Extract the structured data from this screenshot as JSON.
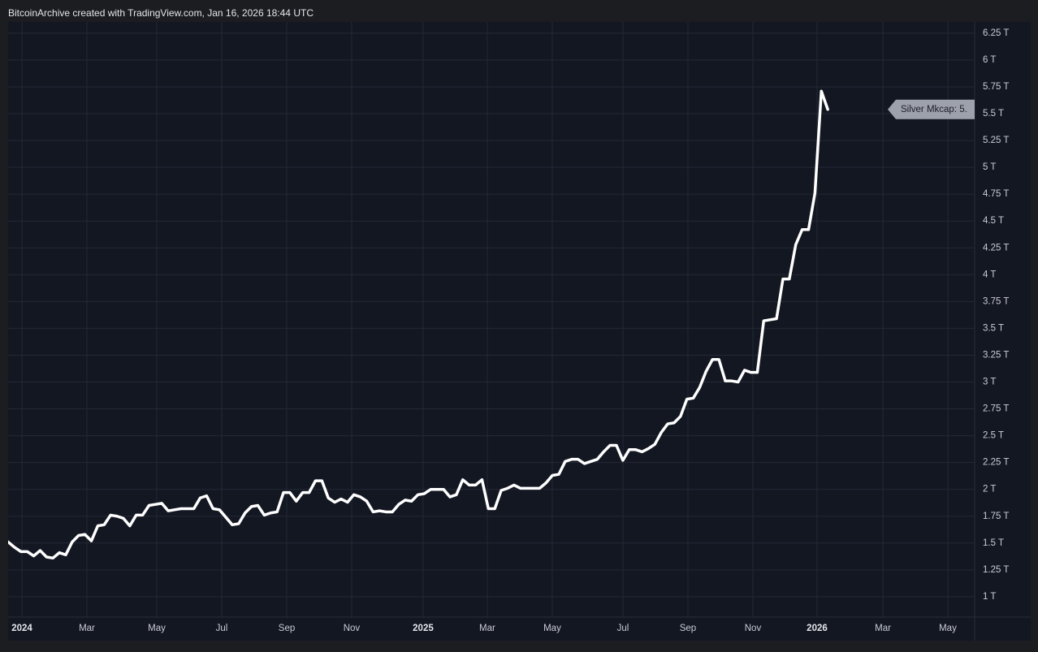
{
  "chart_data": {
    "type": "line",
    "title": "BitcoinArchive created with TradingView.com, Jan 16, 2026 18:44 UTC",
    "label": "Silver Mkcap: 5.",
    "color": "#ffffff",
    "grid": true,
    "values": [
      1.51,
      1.46,
      1.42,
      1.42,
      1.38,
      1.43,
      1.37,
      1.36,
      1.41,
      1.39,
      1.51,
      1.57,
      1.58,
      1.52,
      1.66,
      1.67,
      1.76,
      1.75,
      1.73,
      1.66,
      1.76,
      1.76,
      1.85,
      1.86,
      1.87,
      1.8,
      1.81,
      1.82,
      1.82,
      1.82,
      1.92,
      1.94,
      1.82,
      1.81,
      1.74,
      1.67,
      1.68,
      1.78,
      1.84,
      1.85,
      1.76,
      1.78,
      1.79,
      1.97,
      1.97,
      1.89,
      1.97,
      1.97,
      2.08,
      2.08,
      1.92,
      1.88,
      1.91,
      1.88,
      1.95,
      1.93,
      1.89,
      1.79,
      1.8,
      1.79,
      1.79,
      1.86,
      1.9,
      1.89,
      1.95,
      1.96,
      2.0,
      2.0,
      2.0,
      1.93,
      1.95,
      2.09,
      2.04,
      2.04,
      2.09,
      1.82,
      1.82,
      1.99,
      2.01,
      2.04,
      2.01,
      2.01,
      2.01,
      2.01,
      2.06,
      2.13,
      2.14,
      2.26,
      2.28,
      2.28,
      2.24,
      2.26,
      2.28,
      2.35,
      2.41,
      2.41,
      2.27,
      2.37,
      2.37,
      2.35,
      2.38,
      2.42,
      2.53,
      2.61,
      2.62,
      2.68,
      2.84,
      2.85,
      2.95,
      3.1,
      3.21,
      3.21,
      3.01,
      3.01,
      3.0,
      3.11,
      3.09,
      3.09,
      3.57,
      3.58,
      3.59,
      3.96,
      3.96,
      4.28,
      4.42,
      4.42,
      4.76,
      5.71,
      5.54
    ],
    "xlim": [
      0,
      150.94
    ],
    "xticks": [
      {
        "value": 2.16,
        "label": "2024"
      },
      {
        "value": 12.3,
        "label": "Mar"
      },
      {
        "value": 23.21,
        "label": "May"
      },
      {
        "value": 33.36,
        "label": "Jul"
      },
      {
        "value": 43.51,
        "label": "Sep"
      },
      {
        "value": 53.65,
        "label": "Nov"
      },
      {
        "value": 64.81,
        "label": "2025"
      },
      {
        "value": 74.83,
        "label": "Mar"
      },
      {
        "value": 84.98,
        "label": "May"
      },
      {
        "value": 96.02,
        "label": "Jul"
      },
      {
        "value": 106.16,
        "label": "Sep"
      },
      {
        "value": 116.31,
        "label": "Nov"
      },
      {
        "value": 126.33,
        "label": "2026"
      },
      {
        "value": 136.61,
        "label": "Mar"
      },
      {
        "value": 146.75,
        "label": "May"
      }
    ],
    "ylim": [
      0.81,
      6.355
    ],
    "yticks": [
      {
        "value": 1,
        "label": "1 T"
      },
      {
        "value": 1.25,
        "label": "1.25 T"
      },
      {
        "value": 1.5,
        "label": "1.5 T"
      },
      {
        "value": 1.75,
        "label": "1.75 T"
      },
      {
        "value": 2,
        "label": "2 T"
      },
      {
        "value": 2.25,
        "label": "2.25 T"
      },
      {
        "value": 2.5,
        "label": "2.5 T"
      },
      {
        "value": 2.75,
        "label": "2.75 T"
      },
      {
        "value": 3,
        "label": "3 T"
      },
      {
        "value": 3.25,
        "label": "3.25 T"
      },
      {
        "value": 3.5,
        "label": "3.5 T"
      },
      {
        "value": 3.75,
        "label": "3.75 T"
      },
      {
        "value": 4,
        "label": "4 T"
      },
      {
        "value": 4.25,
        "label": "4.25 T"
      },
      {
        "value": 4.5,
        "label": "4.5 T"
      },
      {
        "value": 4.75,
        "label": "4.75 T"
      },
      {
        "value": 5,
        "label": "5 T"
      },
      {
        "value": 5.25,
        "label": "5.25 T"
      },
      {
        "value": 5.5,
        "label": "5.5 T"
      },
      {
        "value": 5.75,
        "label": "5.75 T"
      },
      {
        "value": 6,
        "label": "6 T"
      },
      {
        "value": 6.25,
        "label": "6.25 T"
      }
    ]
  }
}
